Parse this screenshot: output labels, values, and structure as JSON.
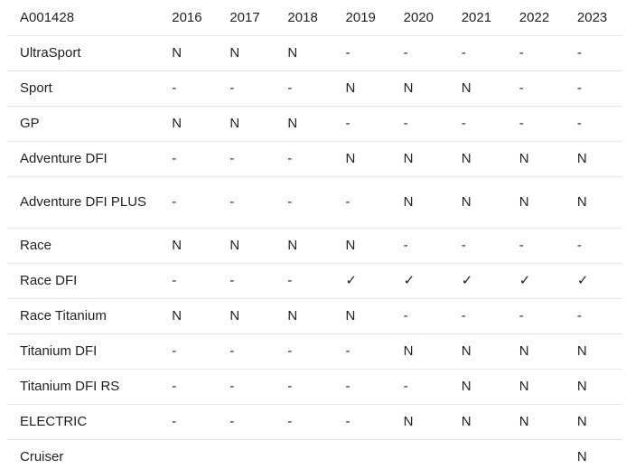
{
  "table": {
    "header": {
      "part_number": "A001428",
      "years": [
        "2016",
        "2017",
        "2018",
        "2019",
        "2020",
        "2021",
        "2022",
        "2023"
      ]
    },
    "rows": [
      {
        "model": "UltraSport",
        "values": [
          "N",
          "N",
          "N",
          "-",
          "-",
          "-",
          "-",
          "-"
        ]
      },
      {
        "model": "Sport",
        "values": [
          "-",
          "-",
          "-",
          "N",
          "N",
          "N",
          "-",
          "-"
        ]
      },
      {
        "model": "GP",
        "values": [
          "N",
          "N",
          "N",
          "-",
          "-",
          "-",
          "-",
          "-"
        ]
      },
      {
        "model": "Adventure DFI",
        "values": [
          "-",
          "-",
          "-",
          "N",
          "N",
          "N",
          "N",
          "N"
        ]
      },
      {
        "model": "Adventure DFI PLUS",
        "values": [
          "-",
          "-",
          "-",
          "-",
          "N",
          "N",
          "N",
          "N"
        ]
      },
      {
        "model": "Race",
        "values": [
          "N",
          "N",
          "N",
          "N",
          "-",
          "-",
          "-",
          "-"
        ]
      },
      {
        "model": "Race DFI",
        "values": [
          "-",
          "-",
          "-",
          "✓",
          "✓",
          "✓",
          "✓",
          "✓"
        ]
      },
      {
        "model": "Race Titanium",
        "values": [
          "N",
          "N",
          "N",
          "N",
          "-",
          "-",
          "-",
          "-"
        ]
      },
      {
        "model": "Titanium DFI",
        "values": [
          "-",
          "-",
          "-",
          "-",
          "N",
          "N",
          "N",
          "N"
        ]
      },
      {
        "model": "Titanium DFI RS",
        "values": [
          "-",
          "-",
          "-",
          "-",
          "-",
          "N",
          "N",
          "N"
        ]
      },
      {
        "model": "ELECTRIC",
        "values": [
          "-",
          "-",
          "-",
          "-",
          "N",
          "N",
          "N",
          "N"
        ]
      },
      {
        "model": "Cruiser",
        "values": [
          "",
          "",
          "",
          "",
          "",
          "",
          "",
          "N"
        ]
      }
    ]
  }
}
